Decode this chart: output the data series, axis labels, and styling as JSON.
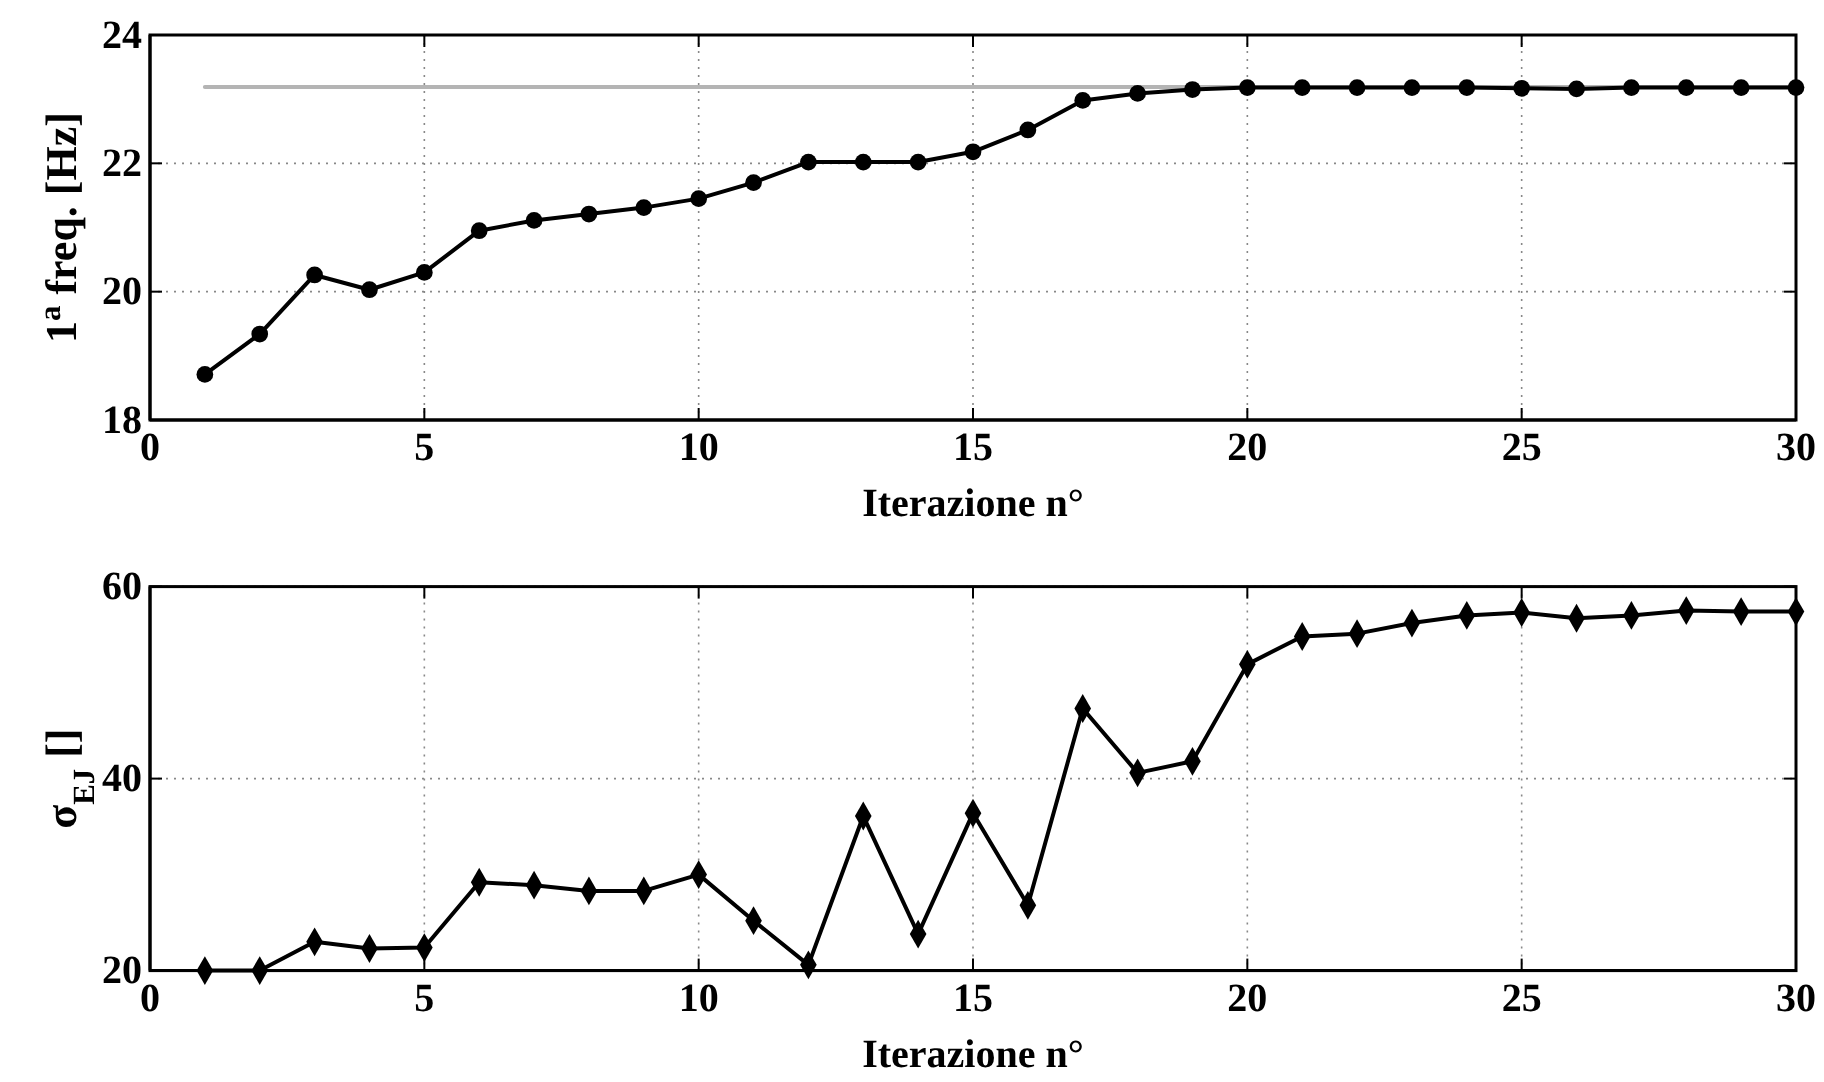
{
  "chart_data": [
    {
      "type": "line",
      "xlabel": "Iterazione n°",
      "ylabel": "1$^{a}$ freq. [Hz]",
      "x": [
        1,
        2,
        3,
        4,
        5,
        6,
        7,
        8,
        9,
        10,
        11,
        12,
        13,
        14,
        15,
        16,
        17,
        18,
        19,
        20,
        21,
        22,
        23,
        24,
        25,
        26,
        27,
        28,
        29,
        30
      ],
      "xlim": [
        0,
        30
      ],
      "xticks": [
        0,
        5,
        10,
        15,
        20,
        25,
        30
      ],
      "ylim": [
        18,
        24
      ],
      "yticks": [
        18,
        20,
        22,
        24
      ],
      "grid": true,
      "series": [
        {
          "color": "#b4b4b4",
          "marker": "none",
          "x": [
            1,
            30
          ],
          "values": [
            23.19,
            23.19
          ]
        },
        {
          "color": "#000000",
          "marker": "circle",
          "values": [
            18.71,
            19.34,
            20.26,
            20.03,
            20.3,
            20.95,
            21.11,
            21.21,
            21.31,
            21.45,
            21.7,
            22.02,
            22.02,
            22.02,
            22.18,
            22.52,
            22.98,
            23.09,
            23.15,
            23.18,
            23.18,
            23.18,
            23.18,
            23.18,
            23.17,
            23.16,
            23.18,
            23.18,
            23.18,
            23.18
          ]
        }
      ]
    },
    {
      "type": "line",
      "xlabel": "Iterazione n°",
      "ylabel": "σ$_{EJ}$ []",
      "x": [
        1,
        2,
        3,
        4,
        5,
        6,
        7,
        8,
        9,
        10,
        11,
        12,
        13,
        14,
        15,
        16,
        17,
        18,
        19,
        20,
        21,
        22,
        23,
        24,
        25,
        26,
        27,
        28,
        29,
        30
      ],
      "xlim": [
        0,
        30
      ],
      "xticks": [
        0,
        5,
        10,
        15,
        20,
        25,
        30
      ],
      "ylim": [
        20,
        60
      ],
      "yticks": [
        20,
        40,
        60
      ],
      "grid": true,
      "series": [
        {
          "color": "#000000",
          "marker": "diamond",
          "values": [
            20.0,
            20.0,
            23.0,
            22.3,
            22.4,
            29.2,
            28.9,
            28.3,
            28.3,
            30.0,
            25.2,
            20.6,
            36.1,
            23.8,
            36.4,
            26.8,
            47.3,
            40.6,
            41.8,
            51.9,
            54.8,
            55.1,
            56.2,
            57.0,
            57.3,
            56.7,
            57.0,
            57.5,
            57.4,
            57.4
          ]
        }
      ]
    }
  ]
}
